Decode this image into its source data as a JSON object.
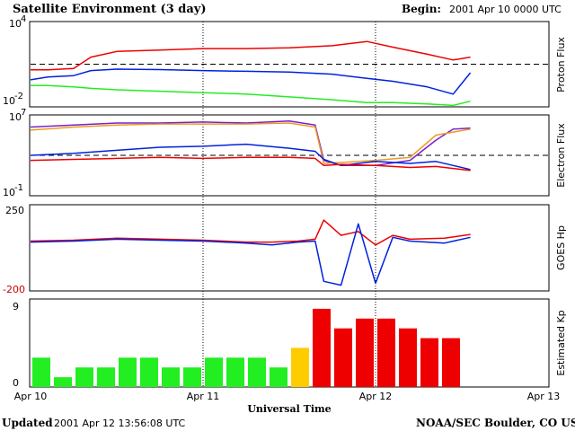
{
  "header": {
    "title": "Satellite Environment (3 day)",
    "begin_label": "Begin:",
    "begin_value": "2001 Apr 10 0000 UTC"
  },
  "footer": {
    "updated_label": "Updated",
    "updated_value": "2001 Apr 12 13:56:08 UTC",
    "credit": "NOAA/SEC Boulder, CO USA"
  },
  "x_axis": {
    "label": "Universal Time",
    "ticks": [
      "Apr 10",
      "Apr 11",
      "Apr 12",
      "Apr 13"
    ]
  },
  "colors": {
    "red": "#ee0000",
    "blue": "#0022dd",
    "green": "#22ee22",
    "purple": "#7722cc",
    "orange": "#ee9922",
    "yellow": "#ffcc00",
    "dashed": "#000000"
  },
  "chart_data": [
    {
      "type": "line",
      "panel": "proton",
      "ylabel": "Proton Flux",
      "y_tick_labels": {
        "top_base": "10",
        "top_exp": "4",
        "bottom_base": "10",
        "bottom_exp": "-2"
      },
      "ylim_log10": [
        -2,
        4
      ],
      "threshold_log10": 1,
      "x_days": [
        0,
        0.1,
        0.25,
        0.35,
        0.5,
        0.75,
        1.0,
        1.25,
        1.5,
        1.75,
        1.95,
        2.1,
        2.3,
        2.45,
        2.55
      ],
      "series": [
        {
          "color": "red",
          "values": [
            0.6,
            0.6,
            0.7,
            1.5,
            1.9,
            2.0,
            2.1,
            2.1,
            2.15,
            2.3,
            2.6,
            2.2,
            1.7,
            1.3,
            1.5
          ]
        },
        {
          "color": "blue",
          "values": [
            -0.1,
            0.1,
            0.2,
            0.55,
            0.65,
            0.62,
            0.55,
            0.5,
            0.45,
            0.3,
            0.0,
            -0.2,
            -0.6,
            -1.1,
            0.4
          ]
        },
        {
          "color": "green",
          "values": [
            -0.5,
            -0.5,
            -0.6,
            -0.7,
            -0.8,
            -0.9,
            -1.0,
            -1.1,
            -1.3,
            -1.5,
            -1.7,
            -1.7,
            -1.8,
            -1.9,
            -1.6
          ]
        }
      ]
    },
    {
      "type": "line",
      "panel": "electron",
      "ylabel": "Electron Flux",
      "y_tick_labels": {
        "top_base": "10",
        "top_exp": "7",
        "bottom_base": "10",
        "bottom_exp": "-1"
      },
      "ylim_log10": [
        -1,
        7
      ],
      "threshold_log10": 3,
      "x_days": [
        0,
        0.25,
        0.5,
        0.75,
        1.0,
        1.25,
        1.5,
        1.65,
        1.7,
        1.8,
        2.0,
        2.2,
        2.35,
        2.45,
        2.55
      ],
      "series": [
        {
          "color": "purple",
          "values": [
            5.8,
            6.0,
            6.2,
            6.2,
            6.3,
            6.2,
            6.4,
            6.0,
            2.5,
            2.0,
            2.0,
            2.5,
            4.5,
            5.6,
            5.7
          ]
        },
        {
          "color": "orange",
          "values": [
            5.5,
            5.8,
            6.0,
            6.1,
            6.1,
            6.1,
            6.2,
            5.8,
            2.2,
            2.3,
            2.5,
            2.8,
            5.0,
            5.3,
            5.6
          ]
        },
        {
          "color": "blue",
          "values": [
            3.0,
            3.2,
            3.5,
            3.8,
            3.9,
            4.1,
            3.7,
            3.4,
            2.6,
            2.0,
            2.4,
            2.2,
            2.4,
            2.0,
            1.6
          ]
        },
        {
          "color": "red",
          "values": [
            2.5,
            2.6,
            2.7,
            2.8,
            2.7,
            2.8,
            2.8,
            2.7,
            2.0,
            2.1,
            2.0,
            1.8,
            1.9,
            1.7,
            1.5
          ]
        }
      ]
    },
    {
      "type": "line",
      "panel": "goes_hp",
      "ylabel": "GOES Hp",
      "y_tick_labels": {
        "top": "250",
        "bottom": "-200"
      },
      "ylim": [
        -200,
        250
      ],
      "x_days": [
        0,
        0.25,
        0.5,
        0.75,
        1.0,
        1.25,
        1.4,
        1.55,
        1.65,
        1.7,
        1.8,
        1.9,
        2.0,
        2.1,
        2.2,
        2.4,
        2.55
      ],
      "series": [
        {
          "color": "red",
          "values": [
            60,
            65,
            75,
            70,
            65,
            55,
            55,
            60,
            70,
            170,
            90,
            110,
            40,
            90,
            70,
            75,
            95
          ]
        },
        {
          "color": "blue",
          "values": [
            55,
            60,
            70,
            65,
            60,
            50,
            40,
            55,
            60,
            -150,
            -170,
            150,
            -160,
            80,
            60,
            50,
            80
          ]
        }
      ]
    },
    {
      "type": "bar",
      "panel": "kp",
      "ylabel": "Estimated Kp",
      "y_tick_labels": {
        "top": "9",
        "bottom": "0"
      },
      "ylim": [
        0,
        9
      ],
      "bin_hours": 3,
      "values": [
        3,
        1,
        2,
        2,
        3,
        3,
        2,
        2,
        3,
        3,
        3,
        2,
        4,
        8,
        6,
        7,
        7,
        6,
        5,
        5
      ]
    }
  ]
}
